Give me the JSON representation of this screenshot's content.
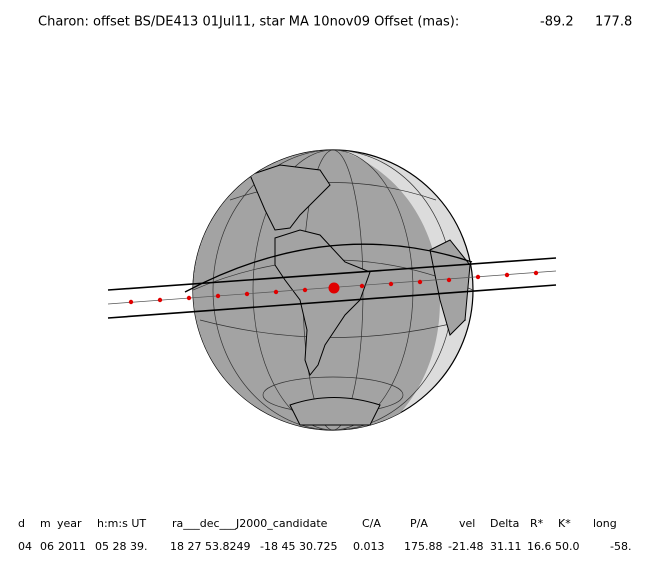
{
  "header": {
    "title": "Charon: offset BS/DE413 01Jul11, star MA 10nov09   Offset (mas):",
    "offset_x": "-89.2",
    "offset_y": "177.8"
  },
  "table": {
    "columns": [
      "d",
      "m",
      "year",
      "h:m:s UT",
      "ra___dec___J2000_candidate",
      "C/A",
      "P/A",
      "vel",
      "Delta",
      "R*",
      "K*",
      "long"
    ],
    "row": [
      "04",
      "06",
      "2011",
      "05 28 39.",
      "18 27 53.8249",
      "-18 45 30.725",
      "0.013",
      "175.88",
      "-21.48",
      "31.11",
      "16.6",
      "50.0",
      "-58."
    ]
  }
}
